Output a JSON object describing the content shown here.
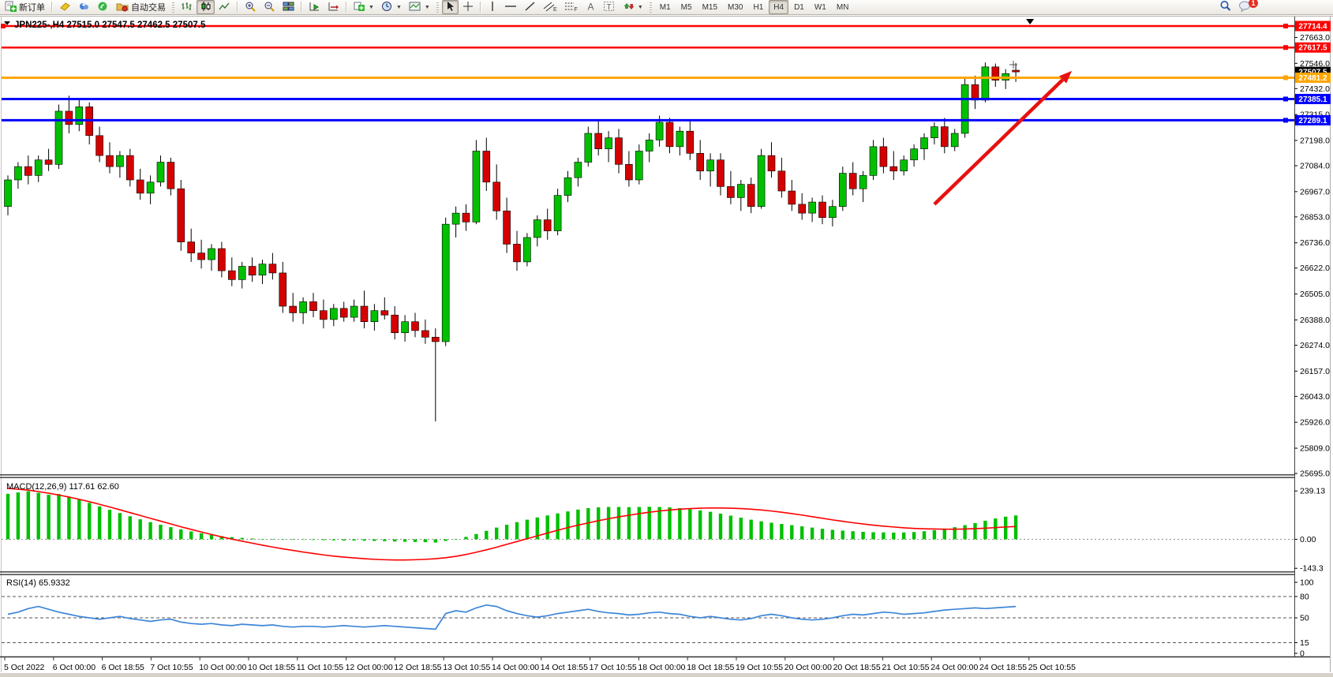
{
  "toolbar": {
    "new_order_label": "新订单",
    "autotrade_label": "自动交易",
    "timeframes": [
      "M1",
      "M5",
      "M15",
      "M30",
      "H1",
      "H4",
      "D1",
      "W1",
      "MN"
    ],
    "active_timeframe": "H4",
    "notification_count": "1"
  },
  "chart_data": {
    "type": "candlestick",
    "symbol_title": "JPN225-,H4",
    "ohlc_display": "27515.0 27547.5 27462.5 27507.5",
    "current_bar": {
      "open": 27515.0,
      "high": 27547.5,
      "low": 27462.5,
      "close": 27507.5
    },
    "current_price_tag": {
      "label": "27507.5",
      "price": 27507.5,
      "bg": "#000000"
    },
    "price_axis_ticks": [
      {
        "label": "27663.0",
        "price": 27663.0
      },
      {
        "label": "27546.0",
        "price": 27546.0
      },
      {
        "label": "27432.0",
        "price": 27432.0
      },
      {
        "label": "27315.0",
        "price": 27315.0
      },
      {
        "label": "27198.0",
        "price": 27198.0
      },
      {
        "label": "27084.0",
        "price": 27084.0
      },
      {
        "label": "26967.0",
        "price": 26967.0
      },
      {
        "label": "26853.0",
        "price": 26853.0
      },
      {
        "label": "26736.0",
        "price": 26736.0
      },
      {
        "label": "26622.0",
        "price": 26622.0
      },
      {
        "label": "26505.0",
        "price": 26505.0
      },
      {
        "label": "26388.0",
        "price": 26388.0
      },
      {
        "label": "26274.0",
        "price": 26274.0
      },
      {
        "label": "26157.0",
        "price": 26157.0
      },
      {
        "label": "26043.0",
        "price": 26043.0
      },
      {
        "label": "25926.0",
        "price": 25926.0
      },
      {
        "label": "25809.0",
        "price": 25809.0
      },
      {
        "label": "25695.0",
        "price": 25695.0
      }
    ],
    "hlines": [
      {
        "label": "27714.4",
        "price": 27714.4,
        "color": "#ff0000",
        "width": 2.5
      },
      {
        "label": "27617.5",
        "price": 27617.5,
        "color": "#ff0000",
        "width": 2.5
      },
      {
        "label": "27481.2",
        "price": 27481.2,
        "color": "#ffa500",
        "width": 3
      },
      {
        "label": "27385.1",
        "price": 27385.1,
        "color": "#0000ff",
        "width": 3
      },
      {
        "label": "27289.1",
        "price": 27289.1,
        "color": "#0000ff",
        "width": 3
      }
    ],
    "arrow_object": {
      "from_bar": 91,
      "from_price": 26910,
      "to_bar": 104.5,
      "to_price": 27512,
      "color": "#e81010"
    },
    "top_marker_bar": 100.4,
    "time_axis_labels": [
      "5 Oct 2022",
      "6 Oct 00:00",
      "6 Oct 18:55",
      "7 Oct 10:55",
      "10 Oct 00:00",
      "10 Oct 18:55",
      "11 Oct 10:55",
      "12 Oct 00:00",
      "12 Oct 18:55",
      "13 Oct 10:55",
      "14 Oct 00:00",
      "14 Oct 18:55",
      "17 Oct 10:55",
      "18 Oct 00:00",
      "18 Oct 18:55",
      "19 Oct 10:55",
      "20 Oct 00:00",
      "20 Oct 18:55",
      "21 Oct 10:55",
      "24 Oct 00:00",
      "24 Oct 18:55",
      "25 Oct 10:55"
    ],
    "candles": [
      [
        26900,
        27040,
        26860,
        27020
      ],
      [
        27020,
        27100,
        26980,
        27080
      ],
      [
        27080,
        27130,
        27000,
        27040
      ],
      [
        27040,
        27130,
        27010,
        27110
      ],
      [
        27110,
        27160,
        27060,
        27090
      ],
      [
        27090,
        27360,
        27070,
        27330
      ],
      [
        27330,
        27400,
        27230,
        27270
      ],
      [
        27270,
        27380,
        27240,
        27350
      ],
      [
        27350,
        27370,
        27180,
        27220
      ],
      [
        27220,
        27260,
        27100,
        27130
      ],
      [
        27130,
        27190,
        27050,
        27080
      ],
      [
        27080,
        27150,
        27030,
        27130
      ],
      [
        27130,
        27160,
        26990,
        27020
      ],
      [
        27020,
        27070,
        26930,
        26960
      ],
      [
        26960,
        27040,
        26910,
        27010
      ],
      [
        27010,
        27130,
        26990,
        27100
      ],
      [
        27100,
        27120,
        26950,
        26980
      ],
      [
        26980,
        27020,
        26700,
        26740
      ],
      [
        26740,
        26800,
        26650,
        26690
      ],
      [
        26690,
        26750,
        26620,
        26660
      ],
      [
        26660,
        26730,
        26610,
        26710
      ],
      [
        26710,
        26740,
        26580,
        26610
      ],
      [
        26610,
        26670,
        26540,
        26570
      ],
      [
        26570,
        26650,
        26530,
        26630
      ],
      [
        26630,
        26670,
        26560,
        26590
      ],
      [
        26590,
        26660,
        26550,
        26640
      ],
      [
        26640,
        26690,
        26570,
        26600
      ],
      [
        26600,
        26650,
        26420,
        26450
      ],
      [
        26450,
        26510,
        26380,
        26420
      ],
      [
        26420,
        26490,
        26370,
        26470
      ],
      [
        26470,
        26510,
        26400,
        26430
      ],
      [
        26430,
        26480,
        26350,
        26390
      ],
      [
        26390,
        26460,
        26360,
        26440
      ],
      [
        26440,
        26470,
        26380,
        26400
      ],
      [
        26400,
        26480,
        26380,
        26450
      ],
      [
        26450,
        26520,
        26350,
        26380
      ],
      [
        26380,
        26460,
        26340,
        26430
      ],
      [
        26430,
        26490,
        26390,
        26410
      ],
      [
        26410,
        26450,
        26300,
        26330
      ],
      [
        26330,
        26410,
        26290,
        26380
      ],
      [
        26380,
        26420,
        26310,
        26340
      ],
      [
        26340,
        26390,
        26280,
        26310
      ],
      [
        26310,
        26350,
        25930,
        26290
      ],
      [
        26290,
        26850,
        26270,
        26820
      ],
      [
        26820,
        26900,
        26760,
        26870
      ],
      [
        26870,
        26910,
        26790,
        26830
      ],
      [
        26830,
        27200,
        26820,
        27150
      ],
      [
        27150,
        27210,
        26970,
        27010
      ],
      [
        27010,
        27090,
        26840,
        26880
      ],
      [
        26880,
        26940,
        26690,
        26730
      ],
      [
        26730,
        26790,
        26610,
        26650
      ],
      [
        26650,
        26780,
        26630,
        26760
      ],
      [
        26760,
        26860,
        26720,
        26840
      ],
      [
        26840,
        26890,
        26750,
        26790
      ],
      [
        26790,
        26980,
        26770,
        26950
      ],
      [
        26950,
        27060,
        26920,
        27030
      ],
      [
        27030,
        27120,
        26990,
        27100
      ],
      [
        27100,
        27260,
        27080,
        27230
      ],
      [
        27230,
        27290,
        27130,
        27160
      ],
      [
        27160,
        27240,
        27100,
        27210
      ],
      [
        27210,
        27250,
        27050,
        27090
      ],
      [
        27090,
        27150,
        26990,
        27020
      ],
      [
        27020,
        27180,
        27000,
        27150
      ],
      [
        27150,
        27230,
        27100,
        27200
      ],
      [
        27200,
        27310,
        27170,
        27280
      ],
      [
        27280,
        27300,
        27140,
        27170
      ],
      [
        27170,
        27260,
        27130,
        27240
      ],
      [
        27240,
        27290,
        27110,
        27140
      ],
      [
        27140,
        27200,
        27020,
        27060
      ],
      [
        27060,
        27140,
        26990,
        27110
      ],
      [
        27110,
        27140,
        26950,
        26990
      ],
      [
        26990,
        27060,
        26910,
        26940
      ],
      [
        26940,
        27020,
        26880,
        27000
      ],
      [
        27000,
        27030,
        26870,
        26900
      ],
      [
        26900,
        27160,
        26890,
        27130
      ],
      [
        27130,
        27190,
        27030,
        27060
      ],
      [
        27060,
        27120,
        26940,
        26970
      ],
      [
        26970,
        27020,
        26880,
        26910
      ],
      [
        26910,
        26960,
        26840,
        26870
      ],
      [
        26870,
        26940,
        26830,
        26920
      ],
      [
        26920,
        26950,
        26820,
        26850
      ],
      [
        26850,
        26930,
        26810,
        26900
      ],
      [
        26900,
        27080,
        26880,
        27050
      ],
      [
        27050,
        27100,
        26950,
        26980
      ],
      [
        26980,
        27060,
        26920,
        27040
      ],
      [
        27040,
        27200,
        27020,
        27170
      ],
      [
        27170,
        27210,
        27050,
        27080
      ],
      [
        27080,
        27150,
        27020,
        27060
      ],
      [
        27060,
        27130,
        27040,
        27110
      ],
      [
        27110,
        27180,
        27080,
        27160
      ],
      [
        27160,
        27230,
        27110,
        27210
      ],
      [
        27210,
        27280,
        27180,
        27260
      ],
      [
        27260,
        27300,
        27140,
        27170
      ],
      [
        27170,
        27250,
        27150,
        27230
      ],
      [
        27230,
        27480,
        27210,
        27450
      ],
      [
        27450,
        27490,
        27340,
        27380
      ],
      [
        27380,
        27550,
        27370,
        27530
      ],
      [
        27530,
        27545,
        27440,
        27470
      ],
      [
        27470,
        27520,
        27430,
        27500
      ],
      [
        27515,
        27547.5,
        27462.5,
        27507.5
      ]
    ],
    "macd": {
      "label_text": "MACD(12,26,9) 117.61 62.60",
      "main_value": "117.61",
      "signal_value": "62.60",
      "axis": [
        {
          "label": "239.13",
          "value": 239.13
        },
        {
          "label": "0.00",
          "value": 0
        },
        {
          "label": "-143.3",
          "value": -143.3
        }
      ],
      "histogram": [
        225,
        232,
        238,
        230,
        220,
        224,
        210,
        196,
        180,
        163,
        146,
        130,
        114,
        99,
        85,
        72,
        60,
        49,
        39,
        30,
        22,
        16,
        11,
        7,
        4,
        2,
        1,
        0,
        -1,
        -2,
        -3,
        -4,
        -5,
        -6,
        -6,
        -7,
        -8,
        -9,
        -11,
        -12,
        -13,
        -14,
        -16,
        -8,
        2,
        12,
        26,
        42,
        58,
        72,
        85,
        97,
        108,
        118,
        128,
        138,
        147,
        154,
        158,
        160,
        160,
        159,
        160,
        161,
        160,
        158,
        154,
        149,
        143,
        136,
        127,
        117,
        107,
        97,
        89,
        82,
        76,
        70,
        64,
        58,
        52,
        47,
        43,
        40,
        37,
        35,
        34,
        33,
        34,
        36,
        40,
        45,
        52,
        60,
        70,
        80,
        92,
        103,
        112,
        118
      ],
      "signal": [
        252,
        248,
        243,
        236,
        228,
        219,
        209,
        198,
        186,
        173,
        160,
        146,
        132,
        118,
        104,
        90,
        76,
        62,
        49,
        36,
        24,
        12,
        1,
        -9,
        -19,
        -29,
        -38,
        -47,
        -55,
        -63,
        -70,
        -77,
        -83,
        -88,
        -92,
        -96,
        -99,
        -101,
        -102,
        -102,
        -101,
        -99,
        -96,
        -91,
        -84,
        -75,
        -64,
        -52,
        -39,
        -25,
        -11,
        3,
        17,
        31,
        45,
        58,
        70,
        81,
        92,
        102,
        111,
        119,
        127,
        134,
        140,
        145,
        149,
        152,
        154,
        155,
        155,
        154,
        152,
        149,
        145,
        140,
        134,
        127,
        120,
        112,
        104,
        96,
        89,
        82,
        76,
        70,
        65,
        61,
        57,
        54,
        52,
        51,
        50,
        50,
        51,
        53,
        55,
        58,
        61,
        63
      ]
    },
    "rsi": {
      "label_text": "RSI(14) 65.9332",
      "value": "65.9332",
      "levels": [
        {
          "label": "100",
          "value": 100,
          "dashed": false
        },
        {
          "label": "80",
          "value": 80,
          "dashed": true
        },
        {
          "label": "50",
          "value": 50,
          "dashed": true
        },
        {
          "label": "15",
          "value": 15,
          "dashed": true
        },
        {
          "label": "0",
          "value": 0,
          "dashed": false
        }
      ],
      "values": [
        55,
        58,
        63,
        66,
        62,
        58,
        55,
        52,
        50,
        48,
        50,
        52,
        49,
        47,
        45,
        47,
        48,
        44,
        42,
        41,
        42,
        40,
        39,
        41,
        40,
        39,
        40,
        38,
        37,
        38,
        38,
        37,
        38,
        39,
        38,
        37,
        38,
        39,
        38,
        37,
        36,
        35,
        34,
        56,
        60,
        58,
        64,
        68,
        66,
        60,
        56,
        53,
        51,
        53,
        56,
        58,
        60,
        62,
        59,
        57,
        56,
        54,
        55,
        57,
        58,
        56,
        55,
        52,
        50,
        52,
        50,
        48,
        47,
        49,
        53,
        55,
        53,
        50,
        48,
        47,
        48,
        50,
        53,
        55,
        54,
        56,
        58,
        57,
        55,
        56,
        57,
        59,
        61,
        62,
        63,
        64,
        63,
        64,
        65,
        66
      ]
    },
    "colors": {
      "bull": "#00c000",
      "bear": "#d40000",
      "wick": "#000000",
      "macd_hist": "#00c000",
      "macd_signal": "#ff0000",
      "rsi_line": "#3e86d8"
    }
  }
}
